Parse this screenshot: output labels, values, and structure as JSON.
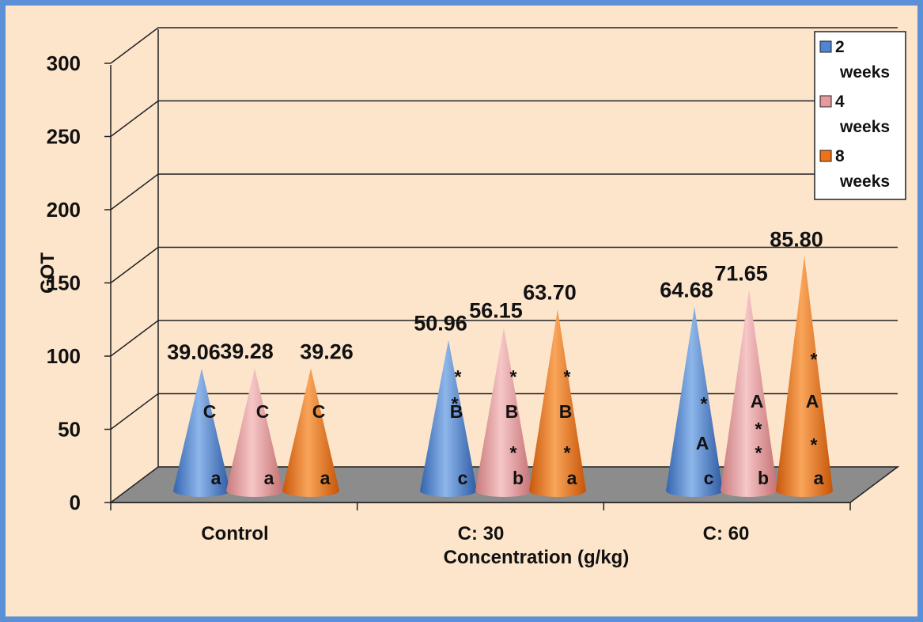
{
  "chart_data": {
    "type": "bar",
    "bar_shape": "cone-3d",
    "ylabel": "GOT",
    "xlabel": "Concentration (g/kg)",
    "ylim": [
      0,
      300
    ],
    "yticks": [
      "0",
      "50",
      "100",
      "150",
      "200",
      "250",
      "300"
    ],
    "grid": true,
    "legend_position": "top-right",
    "categories": [
      "Control",
      "C: 30",
      "C: 60"
    ],
    "series": [
      {
        "name": "2 weeks",
        "name_lines": [
          "2",
          "weeks"
        ],
        "color": "#4f86d4",
        "values": [
          39.06,
          50.96,
          64.68
        ],
        "labels": [
          "39.06",
          "50.96",
          "64.68"
        ]
      },
      {
        "name": "4 weeks",
        "name_lines": [
          "4",
          "weeks"
        ],
        "color": "#e59a9c",
        "values": [
          39.28,
          56.15,
          71.65
        ],
        "labels": [
          "39.28",
          "56.15",
          "71.65"
        ]
      },
      {
        "name": "8 weeks",
        "name_lines": [
          "8",
          "weeks"
        ],
        "color": "#ee7318",
        "values": [
          39.26,
          63.7,
          85.8
        ],
        "labels": [
          "39.26",
          "63.70",
          "85.80"
        ]
      }
    ],
    "annotations": {
      "upper_letters": [
        [
          "C",
          "C",
          "C"
        ],
        [
          "B",
          "B",
          "B"
        ],
        [
          "A",
          "A",
          "A"
        ]
      ],
      "lower_letters": [
        [
          "a",
          "a",
          "a"
        ],
        [
          "c",
          "b",
          "a"
        ],
        [
          "c",
          "b",
          "a"
        ]
      ],
      "asterisks": [
        [
          "",
          "",
          ""
        ],
        [
          "**",
          "**",
          "**"
        ],
        [
          "*",
          "**",
          "**"
        ]
      ]
    }
  }
}
